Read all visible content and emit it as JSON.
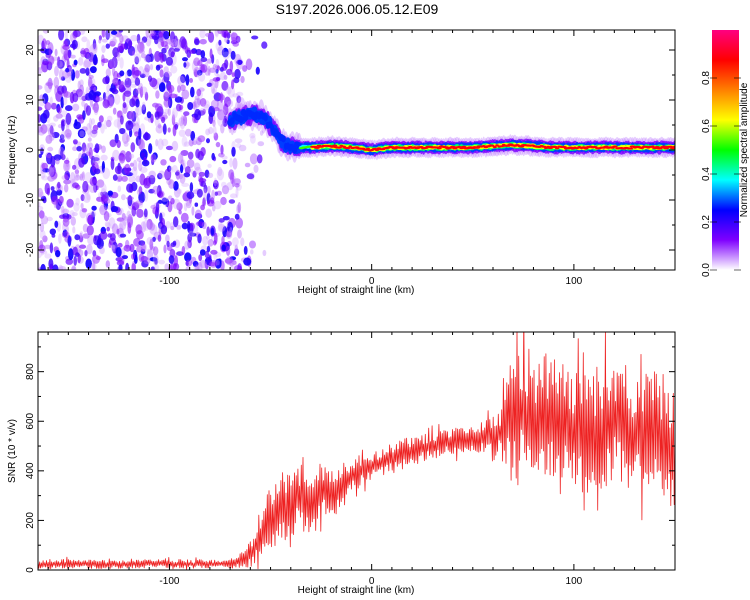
{
  "title": "S197.2026.006.05.12.E09",
  "chart_data": [
    {
      "type": "heatmap",
      "name": "spectrogram",
      "xlabel": "Height of straight line (km)",
      "ylabel": "Frequency (Hz)",
      "xlim": [
        -165,
        150
      ],
      "ylim": [
        -24,
        24
      ],
      "xticks": [
        -100,
        0,
        100
      ],
      "xtick_labels": [
        "-100",
        "0",
        "100"
      ],
      "yticks": [
        -20,
        -10,
        0,
        10,
        20
      ],
      "ytick_labels": [
        "-20",
        "-10",
        "0",
        "10",
        "20"
      ],
      "signal_ridge": {
        "x": [
          -70,
          -62,
          -55,
          -50,
          -45,
          -40,
          -35,
          -30,
          -20,
          -10,
          0,
          10,
          30,
          50,
          70,
          90,
          110,
          130,
          150
        ],
        "y": [
          6,
          7,
          7,
          5,
          2,
          0.5,
          0.5,
          0.5,
          0.8,
          0.5,
          0,
          0.5,
          0.5,
          0.5,
          1,
          0.5,
          0.5,
          0.5,
          0.5
        ]
      },
      "noise_region_x": [
        -165,
        -65
      ],
      "colorbar": {
        "label": "Normalized spectral amplitude",
        "range": [
          0,
          1
        ],
        "ticks": [
          0.0,
          0.2,
          0.4,
          0.6,
          0.8
        ],
        "tick_labels": [
          "0.0",
          "0.2",
          "0.4",
          "0.6",
          "0.8"
        ],
        "colors": [
          "#ffffff",
          "#7f00ff",
          "#0000ff",
          "#00ffff",
          "#00ff00",
          "#ffff00",
          "#ff8000",
          "#ff0000",
          "#ff0080"
        ]
      }
    },
    {
      "type": "line",
      "name": "snr",
      "xlabel": "Height of straight line (km)",
      "ylabel": "SNR (10 * v/v)",
      "xlim": [
        -165,
        150
      ],
      "ylim": [
        0,
        960
      ],
      "xticks": [
        -100,
        0,
        100
      ],
      "xtick_labels": [
        "-100",
        "0",
        "100"
      ],
      "yticks": [
        0,
        200,
        400,
        600,
        800
      ],
      "ytick_labels": [
        "0",
        "200",
        "400",
        "600",
        "800"
      ],
      "color": "#ee2222",
      "series": [
        {
          "name": "SNR",
          "x": [
            -165,
            -150,
            -130,
            -110,
            -90,
            -70,
            -60,
            -55,
            -50,
            -45,
            -40,
            -35,
            -30,
            -25,
            -20,
            -15,
            -10,
            -5,
            0,
            10,
            20,
            30,
            40,
            50,
            60,
            65,
            70,
            75,
            80,
            85,
            90,
            100,
            110,
            120,
            130,
            140,
            150
          ],
          "y": [
            22,
            25,
            23,
            26,
            24,
            25,
            60,
            130,
            210,
            250,
            270,
            300,
            240,
            330,
            300,
            350,
            380,
            400,
            420,
            450,
            480,
            500,
            520,
            530,
            545,
            555,
            620,
            650,
            570,
            600,
            640,
            560,
            540,
            610,
            520,
            570,
            480
          ],
          "noise_amplitude": [
            15,
            15,
            15,
            15,
            15,
            15,
            40,
            70,
            110,
            120,
            120,
            110,
            100,
            90,
            80,
            70,
            60,
            55,
            50,
            50,
            50,
            45,
            45,
            45,
            60,
            110,
            230,
            260,
            240,
            230,
            220,
            200,
            210,
            220,
            200,
            200,
            190
          ]
        }
      ]
    }
  ]
}
